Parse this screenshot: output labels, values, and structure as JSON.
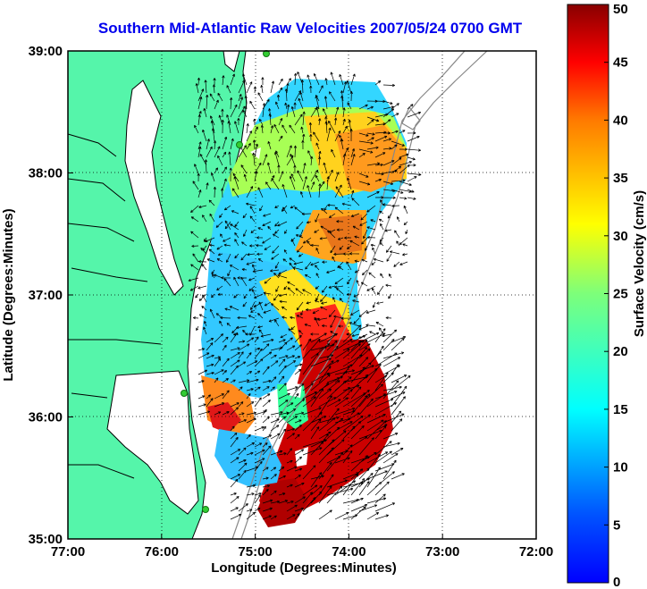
{
  "title": "Southern Mid-Atlantic Raw Velocities 2007/05/24 0700 GMT",
  "map": {
    "xlabel": "Longitude (Degrees:Minutes)",
    "ylabel": "Latitude (Degrees:Minutes)",
    "lon_range": [
      -77,
      -72
    ],
    "lat_range": [
      35,
      39
    ],
    "x_ticks": [
      {
        "value": -77,
        "label": "77:00"
      },
      {
        "value": -76,
        "label": "76:00"
      },
      {
        "value": -75,
        "label": "75:00"
      },
      {
        "value": -74,
        "label": "74:00"
      },
      {
        "value": -73,
        "label": "73:00"
      },
      {
        "value": -72,
        "label": "72:00"
      }
    ],
    "y_ticks": [
      {
        "value": 39,
        "label": "39:00"
      },
      {
        "value": 38,
        "label": "38:00"
      },
      {
        "value": 37,
        "label": "37:00"
      },
      {
        "value": 36,
        "label": "36:00"
      },
      {
        "value": 35,
        "label": "35:00"
      }
    ],
    "grid": "dotted",
    "colors": {
      "land": "#55f5aa",
      "coastline": "#000000",
      "bathymetry": "#888888",
      "station": "#33cc33",
      "vector": "#000000"
    }
  },
  "colorbar": {
    "label": "Surface Velocity (cm/s)",
    "range": [
      0,
      50
    ],
    "ticks": [
      {
        "value": 50,
        "label": "50"
      },
      {
        "value": 45,
        "label": "45"
      },
      {
        "value": 40,
        "label": "40"
      },
      {
        "value": 35,
        "label": "35"
      },
      {
        "value": 30,
        "label": "30"
      },
      {
        "value": 25,
        "label": "25"
      },
      {
        "value": 20,
        "label": "20"
      },
      {
        "value": 15,
        "label": "15"
      },
      {
        "value": 10,
        "label": "10"
      },
      {
        "value": 5,
        "label": "5"
      },
      {
        "value": 0,
        "label": "0"
      }
    ],
    "colormap": "jet"
  }
}
